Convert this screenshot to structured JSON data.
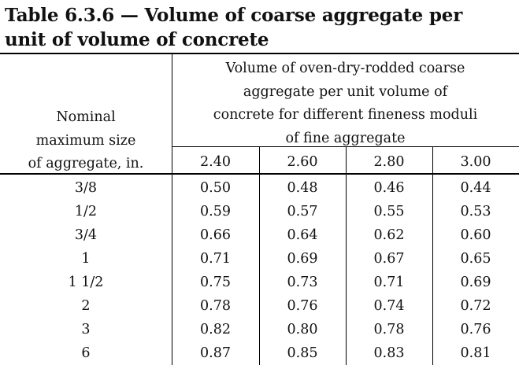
{
  "title": {
    "line1": "Table 6.3.6 — Volume of coarse aggregate per",
    "line2": "unit of volume of concrete"
  },
  "table": {
    "row_header_lines": [
      "Nominal",
      "maximum size",
      "of aggregate, in."
    ],
    "group_header_lines": [
      "Volume of oven-dry-rodded coarse",
      "aggregate per unit volume of",
      "concrete for different fineness moduli",
      "of fine aggregate"
    ],
    "columns": [
      "2.40",
      "2.60",
      "2.80",
      "3.00"
    ],
    "rows": [
      {
        "size": "3/8",
        "values": [
          "0.50",
          "0.48",
          "0.46",
          "0.44"
        ]
      },
      {
        "size": "1/2",
        "values": [
          "0.59",
          "0.57",
          "0.55",
          "0.53"
        ]
      },
      {
        "size": "3/4",
        "values": [
          "0.66",
          "0.64",
          "0.62",
          "0.60"
        ]
      },
      {
        "size": "1",
        "values": [
          "0.71",
          "0.69",
          "0.67",
          "0.65"
        ]
      },
      {
        "size": "1 1/2",
        "values": [
          "0.75",
          "0.73",
          "0.71",
          "0.69"
        ]
      },
      {
        "size": "2",
        "values": [
          "0.78",
          "0.76",
          "0.74",
          "0.72"
        ]
      },
      {
        "size": "3",
        "values": [
          "0.82",
          "0.80",
          "0.78",
          "0.76"
        ]
      },
      {
        "size": "6",
        "values": [
          "0.87",
          "0.85",
          "0.83",
          "0.81"
        ]
      }
    ]
  }
}
